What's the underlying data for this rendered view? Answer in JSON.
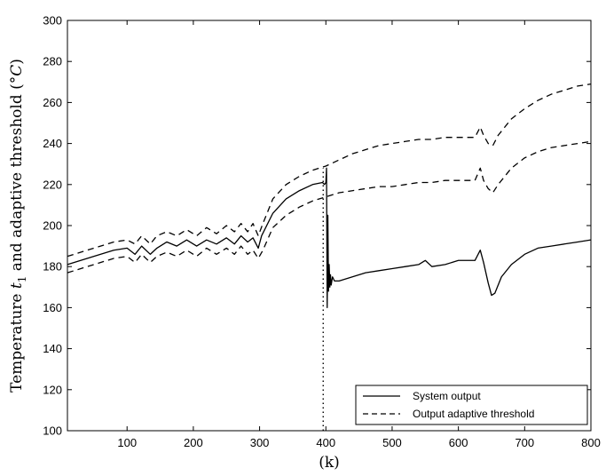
{
  "chart_data": {
    "type": "line",
    "title": "",
    "xlabel": "(k)",
    "ylabel_parts": {
      "prefix": "Temperature ",
      "var": "t",
      "sub": "1",
      "middle": " and adaptive threshold (",
      "unit": "°C",
      "suffix": ")"
    },
    "xlim": [
      10,
      800
    ],
    "ylim": [
      100,
      300
    ],
    "xticks": [
      100,
      200,
      300,
      400,
      500,
      600,
      700,
      800
    ],
    "yticks": [
      100,
      120,
      140,
      160,
      180,
      200,
      220,
      240,
      260,
      280,
      300
    ],
    "grid": false,
    "legend_position": "bottom-right",
    "series": [
      {
        "name": "System output",
        "style": "solid",
        "points": [
          [
            10,
            181
          ],
          [
            50,
            185
          ],
          [
            80,
            188
          ],
          [
            100,
            189
          ],
          [
            112,
            186
          ],
          [
            122,
            190
          ],
          [
            135,
            186
          ],
          [
            145,
            189
          ],
          [
            160,
            192
          ],
          [
            175,
            190
          ],
          [
            190,
            193
          ],
          [
            205,
            190
          ],
          [
            220,
            193
          ],
          [
            235,
            191
          ],
          [
            250,
            194
          ],
          [
            262,
            191
          ],
          [
            272,
            195
          ],
          [
            282,
            192
          ],
          [
            290,
            194
          ],
          [
            298,
            189
          ],
          [
            303,
            195
          ],
          [
            320,
            206
          ],
          [
            340,
            213
          ],
          [
            360,
            217
          ],
          [
            380,
            220
          ],
          [
            395,
            221
          ],
          [
            398,
            220
          ],
          [
            400,
            221
          ],
          [
            401,
            228
          ],
          [
            402,
            160
          ],
          [
            403,
            205
          ],
          [
            404,
            168
          ],
          [
            405,
            181
          ],
          [
            406,
            170
          ],
          [
            407,
            176
          ],
          [
            408,
            171
          ],
          [
            410,
            175
          ],
          [
            413,
            173
          ],
          [
            420,
            173
          ],
          [
            440,
            175
          ],
          [
            460,
            177
          ],
          [
            480,
            178
          ],
          [
            500,
            179
          ],
          [
            520,
            180
          ],
          [
            540,
            181
          ],
          [
            550,
            183
          ],
          [
            560,
            180
          ],
          [
            580,
            181
          ],
          [
            600,
            183
          ],
          [
            615,
            183
          ],
          [
            625,
            183
          ],
          [
            633,
            188
          ],
          [
            638,
            182
          ],
          [
            645,
            172
          ],
          [
            650,
            166
          ],
          [
            655,
            167
          ],
          [
            665,
            175
          ],
          [
            680,
            181
          ],
          [
            700,
            186
          ],
          [
            720,
            189
          ],
          [
            740,
            190
          ],
          [
            760,
            191
          ],
          [
            780,
            192
          ],
          [
            800,
            193
          ]
        ]
      },
      {
        "name": "Output adaptive threshold",
        "style": "dashed",
        "points": [
          [
            10,
            185
          ],
          [
            50,
            189
          ],
          [
            80,
            192
          ],
          [
            100,
            193
          ],
          [
            112,
            191
          ],
          [
            122,
            195
          ],
          [
            135,
            191
          ],
          [
            145,
            195
          ],
          [
            160,
            197
          ],
          [
            175,
            195
          ],
          [
            190,
            198
          ],
          [
            205,
            195
          ],
          [
            220,
            199
          ],
          [
            235,
            196
          ],
          [
            250,
            200
          ],
          [
            262,
            197
          ],
          [
            272,
            201
          ],
          [
            282,
            197
          ],
          [
            290,
            201
          ],
          [
            298,
            195
          ],
          [
            305,
            201
          ],
          [
            320,
            213
          ],
          [
            340,
            220
          ],
          [
            360,
            224
          ],
          [
            380,
            227
          ],
          [
            400,
            229
          ],
          [
            420,
            232
          ],
          [
            440,
            235
          ],
          [
            460,
            237
          ],
          [
            480,
            239
          ],
          [
            500,
            240
          ],
          [
            520,
            241
          ],
          [
            540,
            242
          ],
          [
            560,
            242
          ],
          [
            580,
            243
          ],
          [
            600,
            243
          ],
          [
            615,
            243
          ],
          [
            625,
            243
          ],
          [
            633,
            248
          ],
          [
            638,
            244
          ],
          [
            645,
            240
          ],
          [
            652,
            239
          ],
          [
            660,
            244
          ],
          [
            680,
            252
          ],
          [
            700,
            257
          ],
          [
            720,
            261
          ],
          [
            740,
            264
          ],
          [
            760,
            266
          ],
          [
            780,
            268
          ],
          [
            800,
            269
          ]
        ]
      },
      {
        "name": "Output adaptive threshold",
        "style": "dashed",
        "points": [
          [
            10,
            177
          ],
          [
            50,
            181
          ],
          [
            80,
            184
          ],
          [
            100,
            185
          ],
          [
            112,
            182
          ],
          [
            122,
            186
          ],
          [
            135,
            182
          ],
          [
            145,
            185
          ],
          [
            160,
            187
          ],
          [
            175,
            185
          ],
          [
            190,
            188
          ],
          [
            205,
            185
          ],
          [
            220,
            189
          ],
          [
            235,
            186
          ],
          [
            250,
            189
          ],
          [
            262,
            186
          ],
          [
            272,
            190
          ],
          [
            282,
            186
          ],
          [
            290,
            188
          ],
          [
            298,
            184
          ],
          [
            305,
            188
          ],
          [
            320,
            199
          ],
          [
            340,
            205
          ],
          [
            360,
            209
          ],
          [
            380,
            212
          ],
          [
            400,
            214
          ],
          [
            420,
            216
          ],
          [
            440,
            217
          ],
          [
            460,
            218
          ],
          [
            480,
            219
          ],
          [
            500,
            219
          ],
          [
            520,
            220
          ],
          [
            540,
            221
          ],
          [
            560,
            221
          ],
          [
            580,
            222
          ],
          [
            600,
            222
          ],
          [
            615,
            222
          ],
          [
            625,
            222
          ],
          [
            633,
            228
          ],
          [
            638,
            222
          ],
          [
            645,
            218
          ],
          [
            652,
            216
          ],
          [
            660,
            220
          ],
          [
            680,
            228
          ],
          [
            700,
            233
          ],
          [
            720,
            236
          ],
          [
            740,
            238
          ],
          [
            760,
            239
          ],
          [
            780,
            240
          ],
          [
            800,
            241
          ]
        ]
      }
    ],
    "vertical_marker": {
      "x": 400,
      "style": "dotted"
    }
  }
}
